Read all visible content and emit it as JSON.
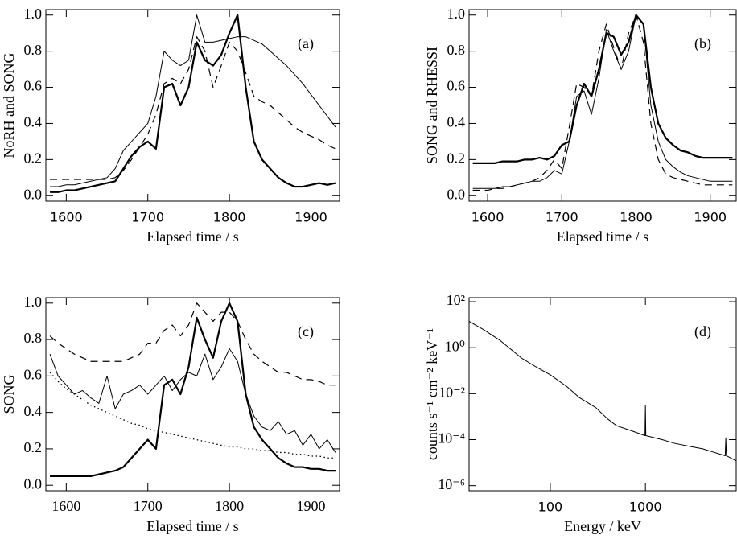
{
  "chart_data": [
    {
      "type": "line",
      "annotation": "(a)",
      "x_label": "Elapsed time / s",
      "y_label": "NoRH and SONG",
      "x": [
        1580,
        1590,
        1600,
        1610,
        1620,
        1630,
        1640,
        1650,
        1660,
        1670,
        1680,
        1690,
        1700,
        1710,
        1720,
        1730,
        1740,
        1750,
        1760,
        1770,
        1780,
        1790,
        1800,
        1810,
        1820,
        1830,
        1840,
        1850,
        1860,
        1870,
        1880,
        1890,
        1900,
        1910,
        1920,
        1930
      ],
      "series": [
        {
          "color": "#000000",
          "style": "thick",
          "values": [
            0.02,
            0.02,
            0.03,
            0.03,
            0.04,
            0.05,
            0.06,
            0.07,
            0.08,
            0.15,
            0.22,
            0.27,
            0.3,
            0.26,
            0.6,
            0.62,
            0.5,
            0.6,
            0.85,
            0.75,
            0.72,
            0.78,
            0.9,
            1.0,
            0.6,
            0.3,
            0.2,
            0.15,
            0.1,
            0.07,
            0.05,
            0.05,
            0.06,
            0.07,
            0.06,
            0.07
          ]
        },
        {
          "color": "#000000",
          "style": "thin",
          "values": [
            0.05,
            0.05,
            0.06,
            0.06,
            0.07,
            0.08,
            0.09,
            0.1,
            0.15,
            0.25,
            0.3,
            0.35,
            0.4,
            0.55,
            0.8,
            0.75,
            0.72,
            0.75,
            1.0,
            0.85,
            0.85,
            0.86,
            0.87,
            0.88,
            0.88,
            0.86,
            0.84,
            0.8,
            0.76,
            0.72,
            0.67,
            0.62,
            0.56,
            0.5,
            0.44,
            0.38
          ]
        },
        {
          "color": "#000000",
          "style": "dashed",
          "values": [
            0.09,
            0.09,
            0.09,
            0.09,
            0.09,
            0.09,
            0.09,
            0.09,
            0.1,
            0.14,
            0.2,
            0.27,
            0.34,
            0.45,
            0.62,
            0.65,
            0.62,
            0.7,
            0.88,
            0.8,
            0.6,
            0.72,
            0.85,
            0.8,
            0.68,
            0.55,
            0.52,
            0.5,
            0.46,
            0.42,
            0.38,
            0.35,
            0.33,
            0.31,
            0.28,
            0.26
          ]
        }
      ],
      "xlim": [
        1575,
        1935
      ],
      "xticks": [
        1600,
        1700,
        1800,
        1900
      ],
      "ylim": [
        -0.03,
        1.03
      ],
      "yticks": [
        {
          "value": 0,
          "label": "0.0"
        },
        0.2,
        0.4,
        0.6,
        0.8,
        {
          "value": 1,
          "label": "1.0"
        }
      ]
    },
    {
      "type": "line",
      "annotation": "(b)",
      "x_label": "Elapsed time / s",
      "y_label": "SONG and RHESSI",
      "x": [
        1580,
        1590,
        1600,
        1610,
        1620,
        1630,
        1640,
        1650,
        1660,
        1670,
        1680,
        1690,
        1700,
        1710,
        1720,
        1730,
        1740,
        1750,
        1760,
        1770,
        1780,
        1790,
        1800,
        1810,
        1820,
        1830,
        1840,
        1850,
        1860,
        1870,
        1880,
        1890,
        1900,
        1910,
        1920,
        1930
      ],
      "series": [
        {
          "color": "#000000",
          "style": "thick",
          "values": [
            0.18,
            0.18,
            0.18,
            0.18,
            0.19,
            0.19,
            0.19,
            0.2,
            0.2,
            0.21,
            0.2,
            0.22,
            0.28,
            0.3,
            0.5,
            0.62,
            0.55,
            0.7,
            0.9,
            0.88,
            0.78,
            0.85,
            1.0,
            0.95,
            0.6,
            0.4,
            0.32,
            0.28,
            0.25,
            0.24,
            0.22,
            0.21,
            0.21,
            0.21,
            0.21,
            0.21
          ]
        },
        {
          "color": "#000000",
          "style": "thin",
          "values": [
            0.04,
            0.04,
            0.04,
            0.04,
            0.05,
            0.05,
            0.06,
            0.07,
            0.08,
            0.08,
            0.1,
            0.14,
            0.12,
            0.3,
            0.55,
            0.58,
            0.45,
            0.65,
            0.92,
            0.8,
            0.7,
            0.8,
            1.0,
            0.95,
            0.5,
            0.3,
            0.2,
            0.16,
            0.13,
            0.11,
            0.1,
            0.09,
            0.08,
            0.08,
            0.08,
            0.08
          ]
        },
        {
          "color": "#000000",
          "style": "dashed",
          "values": [
            0.03,
            0.03,
            0.03,
            0.04,
            0.04,
            0.05,
            0.06,
            0.07,
            0.08,
            0.1,
            0.14,
            0.2,
            0.15,
            0.38,
            0.62,
            0.6,
            0.55,
            0.8,
            0.95,
            0.82,
            0.7,
            0.9,
            1.0,
            0.85,
            0.4,
            0.2,
            0.12,
            0.1,
            0.09,
            0.08,
            0.07,
            0.06,
            0.06,
            0.06,
            0.06,
            0.06
          ]
        }
      ],
      "xlim": [
        1575,
        1935
      ],
      "xticks": [
        1600,
        1700,
        1800,
        1900
      ],
      "ylim": [
        -0.03,
        1.03
      ],
      "yticks": [
        {
          "value": 0,
          "label": "0.0"
        },
        0.2,
        0.4,
        0.6,
        0.8,
        {
          "value": 1,
          "label": "1.0"
        }
      ]
    },
    {
      "type": "line",
      "annotation": "(c)",
      "x_label": "Elapsed time / s",
      "y_label": "SONG",
      "x": [
        1580,
        1590,
        1600,
        1610,
        1620,
        1630,
        1640,
        1650,
        1660,
        1670,
        1680,
        1690,
        1700,
        1710,
        1720,
        1730,
        1740,
        1750,
        1760,
        1770,
        1780,
        1790,
        1800,
        1810,
        1820,
        1830,
        1840,
        1850,
        1860,
        1870,
        1880,
        1890,
        1900,
        1910,
        1920,
        1930
      ],
      "series": [
        {
          "color": "#000000",
          "style": "thick",
          "values": [
            0.05,
            0.05,
            0.05,
            0.05,
            0.05,
            0.05,
            0.06,
            0.07,
            0.08,
            0.1,
            0.15,
            0.2,
            0.25,
            0.2,
            0.55,
            0.58,
            0.5,
            0.65,
            0.92,
            0.8,
            0.7,
            0.9,
            1.0,
            0.9,
            0.5,
            0.32,
            0.25,
            0.2,
            0.15,
            0.12,
            0.1,
            0.1,
            0.09,
            0.09,
            0.08,
            0.08
          ]
        },
        {
          "color": "#000000",
          "style": "thin",
          "values": [
            0.72,
            0.6,
            0.55,
            0.5,
            0.52,
            0.48,
            0.45,
            0.6,
            0.42,
            0.5,
            0.52,
            0.55,
            0.5,
            0.55,
            0.6,
            0.52,
            0.58,
            0.62,
            0.6,
            0.72,
            0.58,
            0.65,
            0.75,
            0.68,
            0.5,
            0.38,
            0.32,
            0.3,
            0.35,
            0.28,
            0.3,
            0.22,
            0.28,
            0.2,
            0.25,
            0.18
          ]
        },
        {
          "color": "#000000",
          "style": "dashed",
          "values": [
            0.82,
            0.78,
            0.75,
            0.72,
            0.7,
            0.68,
            0.68,
            0.68,
            0.68,
            0.68,
            0.7,
            0.72,
            0.78,
            0.78,
            0.85,
            0.88,
            0.82,
            0.88,
            1.0,
            0.95,
            0.9,
            0.95,
            0.95,
            0.9,
            0.8,
            0.72,
            0.68,
            0.65,
            0.62,
            0.62,
            0.6,
            0.58,
            0.58,
            0.57,
            0.55,
            0.55
          ]
        },
        {
          "color": "#000000",
          "style": "dotted",
          "values": [
            0.62,
            0.57,
            0.53,
            0.5,
            0.47,
            0.44,
            0.42,
            0.4,
            0.38,
            0.36,
            0.34,
            0.33,
            0.31,
            0.3,
            0.29,
            0.28,
            0.27,
            0.26,
            0.25,
            0.24,
            0.23,
            0.22,
            0.21,
            0.21,
            0.2,
            0.2,
            0.19,
            0.19,
            0.18,
            0.18,
            0.17,
            0.17,
            0.16,
            0.16,
            0.15,
            0.15
          ]
        }
      ],
      "xlim": [
        1575,
        1935
      ],
      "xticks": [
        1600,
        1700,
        1800,
        1900
      ],
      "ylim": [
        -0.03,
        1.03
      ],
      "yticks": [
        {
          "value": 0,
          "label": "0.0"
        },
        0.2,
        0.4,
        0.6,
        0.8,
        {
          "value": 1,
          "label": "1.0"
        }
      ]
    },
    {
      "type": "line",
      "annotation": "(d)",
      "x_label": "Energy / keV",
      "y_label": "counts s⁻¹ cm⁻² keV⁻¹",
      "x": [
        14,
        20,
        30,
        50,
        70,
        100,
        150,
        200,
        300,
        400,
        500,
        700,
        990,
        1000,
        1010,
        1500,
        2000,
        3000,
        4000,
        5000,
        6900,
        7000,
        7100,
        9000
      ],
      "series": [
        {
          "color": "#000000",
          "style": "thin",
          "values": [
            14,
            6,
            2,
            0.35,
            0.15,
            0.066,
            0.02,
            0.007,
            0.0025,
            0.0008,
            0.0004,
            0.00025,
            0.00015,
            0.003,
            0.00015,
            0.0001,
            7e-05,
            5e-05,
            4e-05,
            3e-05,
            2e-05,
            0.00012,
            2e-05,
            1.2e-05
          ]
        }
      ],
      "xlog": true,
      "ylog": true,
      "xlim": [
        14,
        9000
      ],
      "xticks": [
        100,
        1000
      ],
      "ylim": [
        6e-07,
        150
      ],
      "yticks": [
        {
          "value": 1e-06,
          "label": "10⁻⁶"
        },
        {
          "value": 0.0001,
          "label": "10⁻⁴"
        },
        {
          "value": 0.01,
          "label": "10⁻²"
        },
        {
          "value": 1,
          "label": "10⁰"
        },
        {
          "value": 100,
          "label": "10²"
        }
      ]
    }
  ]
}
